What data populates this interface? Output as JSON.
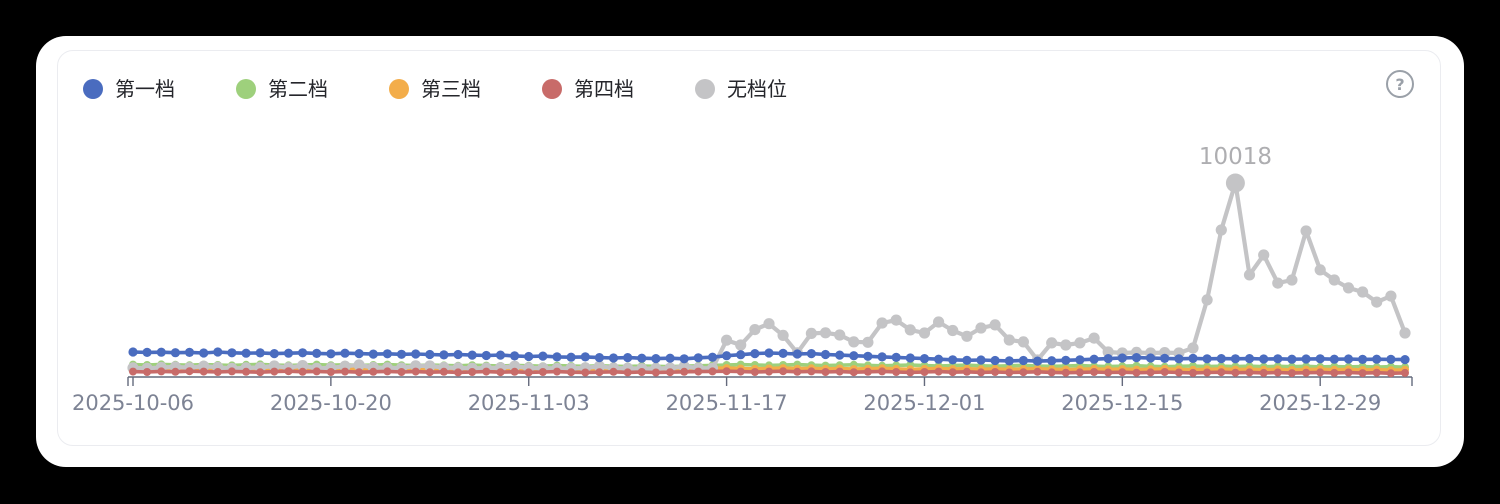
{
  "ui": {
    "help_glyph": "?"
  },
  "colors": {
    "axis": "#646a7c",
    "x_label": "#7d8394",
    "annotation": "#aeaeb1",
    "legend_text": "#25262b",
    "panel_border": "#ebecf0",
    "card_bg": "#ffffff",
    "page_bg": "#000000"
  },
  "legend": {
    "items": [
      {
        "label": "第一档",
        "color": "#4a6cbf"
      },
      {
        "label": "第二档",
        "color": "#9ed07c"
      },
      {
        "label": "第三档",
        "color": "#f3ad4a"
      },
      {
        "label": "第四档",
        "color": "#c86b69"
      },
      {
        "label": "无档位",
        "color": "#c4c4c6"
      }
    ]
  },
  "chart_data": {
    "type": "line",
    "title": "",
    "xlabel": "",
    "ylabel": "",
    "ylim": [
      0,
      10400
    ],
    "grid": false,
    "y_axis_labels_visible": false,
    "legend_position": "top-left",
    "x_tick_labels": [
      "2025-10-06",
      "2025-10-20",
      "2025-11-03",
      "2025-11-17",
      "2025-12-01",
      "2025-12-15",
      "2025-12-29"
    ],
    "x_tick_indices": [
      0,
      14,
      28,
      42,
      56,
      70,
      84
    ],
    "dates": [
      "2025-10-06",
      "2025-10-07",
      "2025-10-08",
      "2025-10-09",
      "2025-10-10",
      "2025-10-11",
      "2025-10-12",
      "2025-10-13",
      "2025-10-14",
      "2025-10-15",
      "2025-10-16",
      "2025-10-17",
      "2025-10-18",
      "2025-10-19",
      "2025-10-20",
      "2025-10-21",
      "2025-10-22",
      "2025-10-23",
      "2025-10-24",
      "2025-10-25",
      "2025-10-26",
      "2025-10-27",
      "2025-10-28",
      "2025-10-29",
      "2025-10-30",
      "2025-10-31",
      "2025-11-01",
      "2025-11-02",
      "2025-11-03",
      "2025-11-04",
      "2025-11-05",
      "2025-11-06",
      "2025-11-07",
      "2025-11-08",
      "2025-11-09",
      "2025-11-10",
      "2025-11-11",
      "2025-11-12",
      "2025-11-13",
      "2025-11-14",
      "2025-11-15",
      "2025-11-16",
      "2025-11-17",
      "2025-11-18",
      "2025-11-19",
      "2025-11-20",
      "2025-11-21",
      "2025-11-22",
      "2025-11-23",
      "2025-11-24",
      "2025-11-25",
      "2025-11-26",
      "2025-11-27",
      "2025-11-28",
      "2025-11-29",
      "2025-11-30",
      "2025-12-01",
      "2025-12-02",
      "2025-12-03",
      "2025-12-04",
      "2025-12-05",
      "2025-12-06",
      "2025-12-07",
      "2025-12-08",
      "2025-12-09",
      "2025-12-10",
      "2025-12-11",
      "2025-12-12",
      "2025-12-13",
      "2025-12-14",
      "2025-12-15",
      "2025-12-16",
      "2025-12-17",
      "2025-12-18",
      "2025-12-19",
      "2025-12-20",
      "2025-12-21",
      "2025-12-22",
      "2025-12-23",
      "2025-12-24",
      "2025-12-25",
      "2025-12-26",
      "2025-12-27",
      "2025-12-28",
      "2025-12-29",
      "2025-12-30",
      "2025-12-31",
      "2026-01-01",
      "2026-01-02",
      "2026-01-03",
      "2026-01-04"
    ],
    "series": [
      {
        "name": "第一档",
        "color": "#4a6cbf",
        "values": [
          1290,
          1270,
          1280,
          1255,
          1270,
          1240,
          1290,
          1250,
          1230,
          1245,
          1210,
          1230,
          1250,
          1220,
          1200,
          1230,
          1210,
          1180,
          1200,
          1170,
          1190,
          1160,
          1140,
          1160,
          1130,
          1110,
          1130,
          1090,
          1060,
          1080,
          1040,
          1020,
          1040,
          1000,
          980,
          1000,
          970,
          950,
          970,
          940,
          990,
          1020,
          1100,
          1150,
          1210,
          1240,
          1220,
          1190,
          1210,
          1160,
          1130,
          1100,
          1070,
          1040,
          1010,
          980,
          950,
          920,
          890,
          860,
          880,
          850,
          830,
          850,
          820,
          840,
          860,
          890,
          920,
          950,
          980,
          1000,
          980,
          960,
          940,
          960,
          940,
          950,
          940,
          950,
          930,
          940,
          920,
          930,
          940,
          920,
          930,
          910,
          920,
          910,
          900
        ]
      },
      {
        "name": "第二档",
        "color": "#9ed07c",
        "values": [
          640,
          620,
          650,
          630,
          610,
          640,
          620,
          600,
          630,
          650,
          620,
          600,
          620,
          640,
          610,
          630,
          600,
          620,
          640,
          610,
          590,
          620,
          600,
          580,
          610,
          590,
          570,
          600,
          580,
          560,
          590,
          570,
          550,
          580,
          560,
          540,
          570,
          550,
          530,
          560,
          580,
          600,
          620,
          640,
          620,
          600,
          620,
          640,
          610,
          590,
          610,
          630,
          600,
          580,
          600,
          620,
          590,
          570,
          590,
          610,
          580,
          560,
          580,
          600,
          570,
          550,
          570,
          590,
          560,
          540,
          560,
          580,
          550,
          530,
          550,
          570,
          540,
          560,
          540,
          560,
          530,
          550,
          530,
          550,
          520,
          540,
          520,
          540,
          510,
          530,
          510
        ]
      },
      {
        "name": "第三档",
        "color": "#f3ad4a",
        "values": [
          440,
          420,
          450,
          430,
          460,
          440,
          420,
          450,
          430,
          410,
          440,
          460,
          430,
          450,
          420,
          440,
          410,
          430,
          450,
          420,
          440,
          410,
          430,
          400,
          420,
          440,
          410,
          430,
          400,
          420,
          440,
          410,
          390,
          410,
          430,
          400,
          420,
          390,
          410,
          430,
          440,
          450,
          460,
          440,
          420,
          440,
          460,
          430,
          450,
          420,
          440,
          410,
          430,
          450,
          420,
          400,
          420,
          440,
          410,
          430,
          400,
          420,
          390,
          410,
          430,
          400,
          380,
          400,
          420,
          390,
          410,
          380,
          400,
          420,
          390,
          370,
          390,
          410,
          380,
          400,
          370,
          390,
          360,
          380,
          400,
          370,
          390,
          360,
          380,
          350,
          370
        ]
      },
      {
        "name": "第四档",
        "color": "#c86b69",
        "values": [
          280,
          260,
          290,
          270,
          300,
          280,
          260,
          290,
          270,
          250,
          280,
          300,
          270,
          290,
          260,
          280,
          250,
          270,
          290,
          260,
          280,
          250,
          270,
          240,
          260,
          280,
          250,
          270,
          240,
          260,
          280,
          250,
          230,
          250,
          270,
          240,
          260,
          230,
          250,
          270,
          280,
          290,
          300,
          280,
          260,
          280,
          300,
          270,
          290,
          260,
          280,
          250,
          270,
          290,
          260,
          240,
          260,
          280,
          250,
          270,
          240,
          260,
          230,
          250,
          270,
          240,
          220,
          240,
          260,
          230,
          250,
          220,
          240,
          260,
          230,
          210,
          230,
          250,
          220,
          240,
          210,
          230,
          200,
          220,
          240,
          210,
          230,
          200,
          220,
          190,
          210
        ]
      },
      {
        "name": "无档位",
        "color": "#c4c4c6",
        "values": [
          470,
          450,
          490,
          520,
          480,
          560,
          500,
          440,
          470,
          490,
          570,
          480,
          590,
          450,
          470,
          560,
          620,
          490,
          470,
          460,
          580,
          570,
          490,
          470,
          450,
          460,
          480,
          560,
          470,
          460,
          440,
          450,
          470,
          550,
          460,
          450,
          430,
          440,
          460,
          540,
          460,
          450,
          1900,
          1650,
          2450,
          2750,
          2150,
          1250,
          2250,
          2280,
          2170,
          1810,
          1790,
          2790,
          2940,
          2430,
          2270,
          2840,
          2400,
          2100,
          2530,
          2690,
          1910,
          1810,
          880,
          1760,
          1650,
          1760,
          2010,
          1290,
          1240,
          1270,
          1240,
          1260,
          1240,
          1500,
          3980,
          7590,
          10018,
          5270,
          6300,
          4850,
          5010,
          7540,
          5530,
          5010,
          4600,
          4390,
          3870,
          4180,
          2270
        ]
      }
    ],
    "annotation": {
      "label": "10018",
      "value": 10018,
      "series": "无档位",
      "date": "2025-12-23"
    }
  }
}
